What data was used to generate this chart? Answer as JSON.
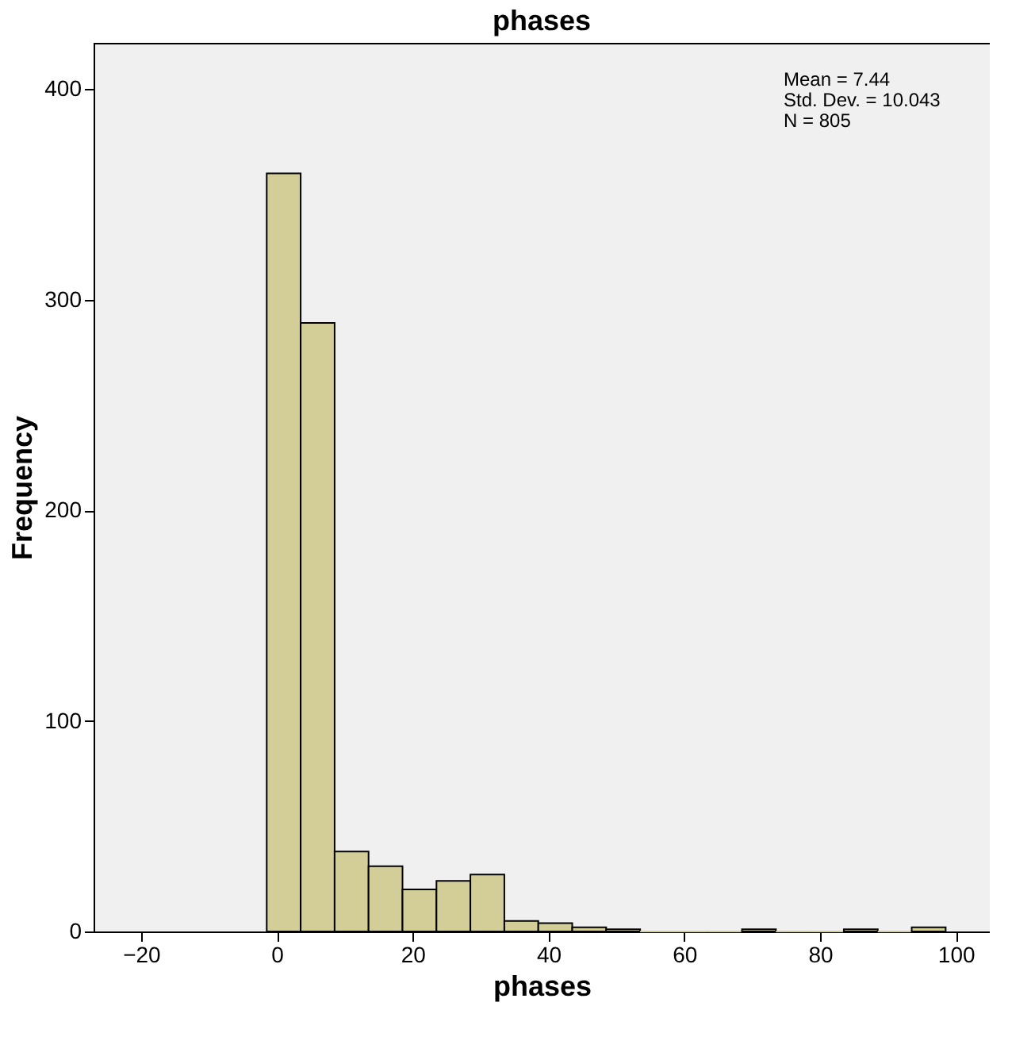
{
  "chart_data": {
    "type": "histogram",
    "title": "phases",
    "xlabel": "phases",
    "ylabel": "Frequency",
    "bins": [
      -1.5,
      3.5,
      8.5,
      13.5,
      18.5,
      23.5,
      28.5,
      33.5,
      38.5,
      43.5,
      48.5,
      53.5,
      58.5,
      63.5,
      68.5,
      73.5,
      78.5,
      83.5,
      88.5,
      93.5,
      98.5
    ],
    "values": [
      360,
      289,
      38,
      31,
      20,
      24,
      27,
      5,
      4,
      2,
      1,
      0,
      0,
      0,
      1,
      0,
      0,
      1,
      0,
      2
    ],
    "color": "#d3ce97",
    "xlim": [
      -27,
      105
    ],
    "xticks": [
      -20,
      0,
      20,
      40,
      60,
      80,
      100
    ],
    "ylim": [
      0,
      422
    ],
    "yticks": [
      0,
      100,
      200,
      300,
      400
    ],
    "grid": false,
    "annotations": [
      "Mean = 7.44\nStd. Dev. = 10.043\nN = 805"
    ]
  }
}
